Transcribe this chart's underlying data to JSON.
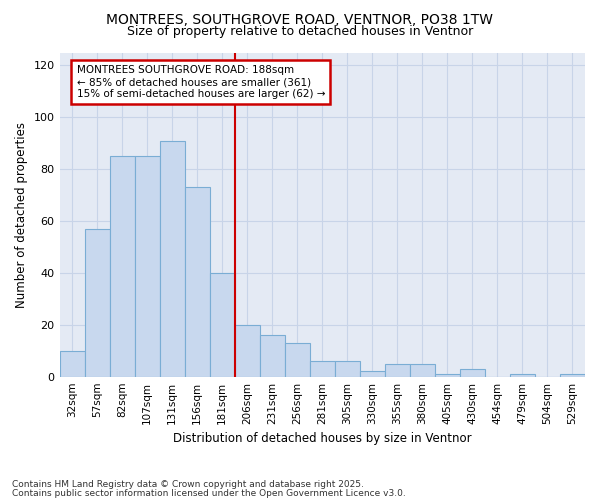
{
  "title_line1": "MONTREES, SOUTHGROVE ROAD, VENTNOR, PO38 1TW",
  "title_line2": "Size of property relative to detached houses in Ventnor",
  "xlabel": "Distribution of detached houses by size in Ventnor",
  "ylabel": "Number of detached properties",
  "categories": [
    "32sqm",
    "57sqm",
    "82sqm",
    "107sqm",
    "131sqm",
    "156sqm",
    "181sqm",
    "206sqm",
    "231sqm",
    "256sqm",
    "281sqm",
    "305sqm",
    "330sqm",
    "355sqm",
    "380sqm",
    "405sqm",
    "430sqm",
    "454sqm",
    "479sqm",
    "504sqm",
    "529sqm"
  ],
  "values": [
    10,
    57,
    85,
    85,
    91,
    73,
    40,
    20,
    16,
    13,
    6,
    6,
    2,
    5,
    5,
    1,
    3,
    0,
    1,
    0,
    1
  ],
  "bar_color": "#c8d8ee",
  "bar_edge_color": "#7aadd4",
  "vline_color": "#cc0000",
  "annotation_text": "MONTREES SOUTHGROVE ROAD: 188sqm\n← 85% of detached houses are smaller (361)\n15% of semi-detached houses are larger (62) →",
  "annotation_box_color": "white",
  "annotation_box_edge_color": "#cc0000",
  "ylim": [
    0,
    125
  ],
  "yticks": [
    0,
    20,
    40,
    60,
    80,
    100,
    120
  ],
  "grid_color": "#c8d4e8",
  "background_color": "#e4eaf4",
  "footer_line1": "Contains HM Land Registry data © Crown copyright and database right 2025.",
  "footer_line2": "Contains public sector information licensed under the Open Government Licence v3.0."
}
